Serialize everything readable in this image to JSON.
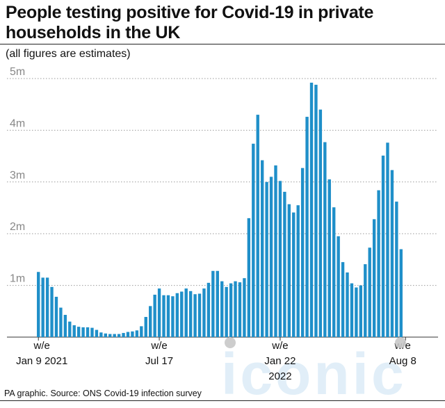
{
  "title": "People testing positive for Covid-19 in private households in the UK",
  "subtitle": "(all figures are estimates)",
  "source": "PA graphic. Source: ONS Covid-19 infection survey",
  "watermark": "iconic",
  "colors": {
    "bar": "#1f8fc9",
    "grid": "#9a9a9a",
    "dot": "#c8c8c8"
  },
  "chart_data": {
    "type": "bar",
    "title": "People testing positive for Covid-19 in private households in the UK",
    "subtitle": "(all figures are estimates)",
    "xlabel": "",
    "ylabel": "",
    "ylim": [
      0,
      5000000
    ],
    "y_ticks": [
      {
        "value": 1000000,
        "label": "1m"
      },
      {
        "value": 2000000,
        "label": "2m"
      },
      {
        "value": 3000000,
        "label": "3m"
      },
      {
        "value": 4000000,
        "label": "4m"
      },
      {
        "value": 5000000,
        "label": "5m"
      }
    ],
    "x_tick_labels": [
      {
        "index": 0,
        "lines": [
          "w/e",
          "Jan 9 2021"
        ]
      },
      {
        "index": 27,
        "lines": [
          "w/e",
          "Jul 17"
        ]
      },
      {
        "index": 54,
        "lines": [
          "w/e",
          "Jan 22",
          "2022"
        ]
      },
      {
        "index": 82,
        "lines": [
          "w/e",
          "Aug 8"
        ]
      }
    ],
    "grid": true,
    "values": [
      1260000,
      1150000,
      1150000,
      970000,
      780000,
      570000,
      430000,
      300000,
      230000,
      200000,
      190000,
      190000,
      180000,
      140000,
      90000,
      70000,
      60000,
      60000,
      60000,
      80000,
      100000,
      110000,
      130000,
      210000,
      390000,
      600000,
      820000,
      940000,
      810000,
      810000,
      790000,
      850000,
      880000,
      940000,
      890000,
      830000,
      840000,
      940000,
      1050000,
      1280000,
      1280000,
      1080000,
      970000,
      1040000,
      1080000,
      1060000,
      1140000,
      2300000,
      3740000,
      4300000,
      3420000,
      3000000,
      3100000,
      3320000,
      3020000,
      2810000,
      2570000,
      2410000,
      2550000,
      3270000,
      4260000,
      4920000,
      4880000,
      4400000,
      3770000,
      3050000,
      2510000,
      1950000,
      1450000,
      1250000,
      1040000,
      960000,
      1000000,
      1410000,
      1730000,
      2280000,
      2840000,
      3510000,
      3760000,
      3230000,
      2620000,
      1700000
    ]
  }
}
